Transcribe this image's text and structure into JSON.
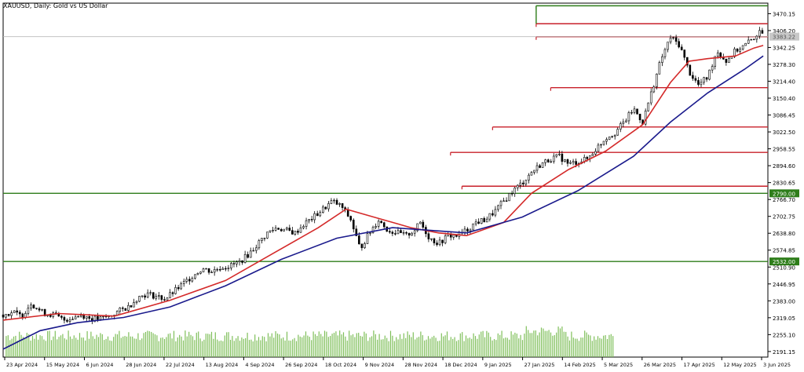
{
  "chart_data": {
    "type": "candlestick",
    "title": "XAUUSD, Daily: Gold vs US Dollar",
    "ylim": [
      2170,
      3510
    ],
    "y_ticks": [
      "3470.15",
      "3406.20",
      "3342.25",
      "3278.30",
      "3214.40",
      "3150.40",
      "3086.45",
      "3022.50",
      "2958.55",
      "2894.60",
      "2830.65",
      "2766.70",
      "2702.75",
      "2638.80",
      "2574.85",
      "2510.90",
      "2446.95",
      "2383.00",
      "2319.05",
      "2255.10",
      "2191.15"
    ],
    "x_ticks": [
      "23 Apr 2024",
      "15 May 2024",
      "6 Jun 2024",
      "28 Jun 2024",
      "22 Jul 2024",
      "13 Aug 2024",
      "4 Sep 2024",
      "26 Sep 2024",
      "18 Oct 2024",
      "9 Nov 2024",
      "28 Nov 2024",
      "18 Dec 2024",
      "9 Jan 2025",
      "27 Jan 2025",
      "14 Feb 2025",
      "5 Mar 2025",
      "26 Mar 2025",
      "17 Apr 2025",
      "12 May 2025",
      "3 Jun 2025"
    ],
    "price_badges": [
      {
        "label": "3383.22",
        "value": 3383.22
      },
      {
        "label": "2790.00",
        "value": 2790.0
      },
      {
        "label": "2532.00",
        "value": 2532.0
      }
    ],
    "horizontal_levels": [
      {
        "value": 3500,
        "color": "#2e7d1a",
        "x_start": 0.697
      },
      {
        "value": 3432,
        "color": "#c8202a",
        "x_start": 0.697
      },
      {
        "value": 3383,
        "color": "#c8202a",
        "x_start": 0.697
      },
      {
        "value": 3190,
        "color": "#c8202a",
        "x_start": 0.716
      },
      {
        "value": 3041,
        "color": "#c8202a",
        "x_start": 0.64
      },
      {
        "value": 2945,
        "color": "#c8202a",
        "x_start": 0.585
      },
      {
        "value": 2817,
        "color": "#c8202a",
        "x_start": 0.6
      },
      {
        "value": 2790,
        "color": "#2e7d1a",
        "x_start": 0.0
      },
      {
        "value": 2532,
        "color": "#2e7d1a",
        "x_start": 0.0
      }
    ],
    "close_path": [
      [
        0,
        2330
      ],
      [
        10,
        2340
      ],
      [
        20,
        2325
      ],
      [
        30,
        2375
      ],
      [
        40,
        2345
      ],
      [
        45,
        2335
      ],
      [
        55,
        2330
      ],
      [
        65,
        2310
      ],
      [
        75,
        2320
      ],
      [
        85,
        2330
      ],
      [
        95,
        2315
      ],
      [
        105,
        2315
      ],
      [
        115,
        2325
      ],
      [
        125,
        2345
      ],
      [
        135,
        2360
      ],
      [
        145,
        2395
      ],
      [
        155,
        2410
      ],
      [
        165,
        2400
      ],
      [
        175,
        2390
      ],
      [
        185,
        2420
      ],
      [
        195,
        2450
      ],
      [
        205,
        2480
      ],
      [
        215,
        2505
      ],
      [
        225,
        2495
      ],
      [
        235,
        2510
      ],
      [
        245,
        2515
      ],
      [
        255,
        2530
      ],
      [
        265,
        2560
      ],
      [
        275,
        2600
      ],
      [
        285,
        2640
      ],
      [
        295,
        2660
      ],
      [
        305,
        2650
      ],
      [
        315,
        2640
      ],
      [
        325,
        2675
      ],
      [
        335,
        2700
      ],
      [
        345,
        2730
      ],
      [
        355,
        2760
      ],
      [
        365,
        2740
      ],
      [
        375,
        2690
      ],
      [
        385,
        2580
      ],
      [
        395,
        2640
      ],
      [
        405,
        2690
      ],
      [
        415,
        2650
      ],
      [
        425,
        2640
      ],
      [
        435,
        2630
      ],
      [
        445,
        2655
      ],
      [
        450,
        2680
      ],
      [
        460,
        2620
      ],
      [
        470,
        2600
      ],
      [
        480,
        2630
      ],
      [
        490,
        2630
      ],
      [
        500,
        2650
      ],
      [
        510,
        2680
      ],
      [
        520,
        2690
      ],
      [
        530,
        2720
      ],
      [
        540,
        2760
      ],
      [
        550,
        2800
      ],
      [
        560,
        2830
      ],
      [
        570,
        2870
      ],
      [
        580,
        2900
      ],
      [
        590,
        2920
      ],
      [
        600,
        2930
      ],
      [
        610,
        2900
      ],
      [
        620,
        2910
      ],
      [
        630,
        2920
      ],
      [
        640,
        2960
      ],
      [
        650,
        3000
      ],
      [
        660,
        3020
      ],
      [
        670,
        3060
      ],
      [
        680,
        3110
      ],
      [
        690,
        3060
      ],
      [
        700,
        3180
      ],
      [
        710,
        3300
      ],
      [
        720,
        3380
      ],
      [
        730,
        3350
      ],
      [
        740,
        3250
      ],
      [
        750,
        3200
      ],
      [
        760,
        3230
      ],
      [
        770,
        3330
      ],
      [
        780,
        3290
      ],
      [
        790,
        3330
      ],
      [
        800,
        3350
      ],
      [
        810,
        3380
      ],
      [
        815,
        3400
      ],
      [
        820,
        3383
      ]
    ],
    "series": [
      {
        "color": "#d42a2a",
        "points": [
          [
            0,
            2310
          ],
          [
            60,
            2335
          ],
          [
            120,
            2325
          ],
          [
            180,
            2385
          ],
          [
            240,
            2460
          ],
          [
            290,
            2560
          ],
          [
            340,
            2660
          ],
          [
            370,
            2730
          ],
          [
            400,
            2700
          ],
          [
            440,
            2660
          ],
          [
            470,
            2640
          ],
          [
            500,
            2630
          ],
          [
            540,
            2680
          ],
          [
            570,
            2790
          ],
          [
            610,
            2880
          ],
          [
            650,
            2950
          ],
          [
            690,
            3050
          ],
          [
            720,
            3210
          ],
          [
            740,
            3290
          ],
          [
            760,
            3300
          ],
          [
            790,
            3310
          ],
          [
            810,
            3340
          ],
          [
            820,
            3350
          ]
        ]
      },
      {
        "color": "#1a1a8c",
        "points": [
          [
            0,
            2200
          ],
          [
            40,
            2270
          ],
          [
            80,
            2300
          ],
          [
            130,
            2320
          ],
          [
            180,
            2360
          ],
          [
            240,
            2440
          ],
          [
            300,
            2540
          ],
          [
            360,
            2620
          ],
          [
            420,
            2660
          ],
          [
            460,
            2650
          ],
          [
            500,
            2640
          ],
          [
            560,
            2700
          ],
          [
            620,
            2800
          ],
          [
            680,
            2930
          ],
          [
            720,
            3060
          ],
          [
            760,
            3170
          ],
          [
            800,
            3260
          ],
          [
            820,
            3310
          ]
        ]
      }
    ],
    "volume": {
      "x_start": 0.004,
      "x_end": 0.798
    }
  }
}
